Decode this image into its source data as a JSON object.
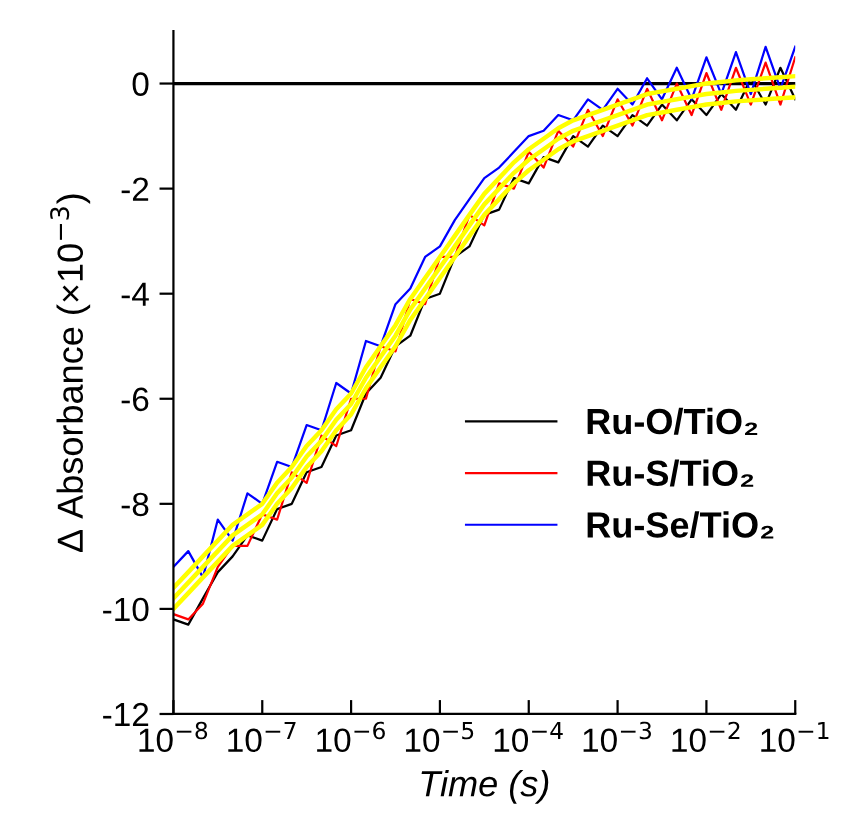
{
  "chart_data": {
    "type": "line",
    "xlabel": "Time (s)",
    "ylabel": "Δ Absorbance (×10$^{−3}$)",
    "log": "x",
    "xlim": [
      1e-08,
      0.1
    ],
    "ylim": [
      -12,
      1
    ],
    "xticks": [
      {
        "value": 1e-08,
        "label": "10$^{−8}$"
      },
      {
        "value": 1e-07,
        "label": "10$^{−7}$"
      },
      {
        "value": 1e-06,
        "label": "10$^{−6}$"
      },
      {
        "value": 1e-05,
        "label": "10$^{−5}$"
      },
      {
        "value": 0.0001,
        "label": "10$^{−4}$"
      },
      {
        "value": 0.001,
        "label": "10$^{−3}$"
      },
      {
        "value": 0.01,
        "label": "10$^{−2}$"
      },
      {
        "value": 0.1,
        "label": "10$^{−1}$"
      }
    ],
    "yticks": [
      -12,
      -10,
      -8,
      -6,
      -4,
      -2,
      0
    ],
    "x": [
      1e-08,
      1.47e-08,
      2.15e-08,
      3.16e-08,
      4.64e-08,
      6.81e-08,
      1e-07,
      1.47e-07,
      2.15e-07,
      3.16e-07,
      4.64e-07,
      6.81e-07,
      1e-06,
      1.47e-06,
      2.15e-06,
      3.16e-06,
      4.64e-06,
      6.81e-06,
      1e-05,
      1.47e-05,
      2.15e-05,
      3.16e-05,
      4.64e-05,
      6.81e-05,
      0.0001,
      0.000147,
      0.000215,
      0.000316,
      0.000464,
      0.000681,
      0.001,
      0.00147,
      0.00215,
      0.00316,
      0.00464,
      0.00681,
      0.01,
      0.0147,
      0.0215,
      0.0316,
      0.0464,
      0.0681,
      0.1
    ],
    "series": [
      {
        "name": "Ru-O/TiO₂",
        "color": "#000000",
        "values": [
          -10.2,
          -10.3,
          -9.8,
          -9.3,
          -9.0,
          -8.6,
          -8.7,
          -8.1,
          -8.0,
          -7.4,
          -7.3,
          -6.7,
          -6.6,
          -5.9,
          -5.6,
          -5.0,
          -4.8,
          -4.1,
          -4.0,
          -3.3,
          -3.1,
          -2.5,
          -2.4,
          -1.8,
          -1.9,
          -1.4,
          -1.5,
          -1.0,
          -1.2,
          -0.8,
          -1.0,
          -0.6,
          -0.8,
          -0.4,
          -0.7,
          -0.3,
          -0.6,
          -0.2,
          -0.5,
          0.1,
          -0.4,
          0.3,
          -0.3
        ]
      },
      {
        "name": "Ru-S/TiO₂",
        "color": "#ff0000",
        "values": [
          -10.1,
          -10.2,
          -9.9,
          -9.2,
          -8.8,
          -8.8,
          -8.2,
          -8.3,
          -7.4,
          -7.6,
          -6.7,
          -6.9,
          -6.0,
          -6.0,
          -5.0,
          -5.1,
          -4.1,
          -4.2,
          -3.3,
          -3.3,
          -2.5,
          -2.7,
          -1.9,
          -2.0,
          -1.3,
          -1.6,
          -0.9,
          -1.2,
          -0.5,
          -1.0,
          -0.3,
          -0.8,
          -0.1,
          -0.7,
          0.0,
          -0.6,
          0.2,
          -0.5,
          0.3,
          -0.4,
          0.4,
          -0.4,
          0.5
        ]
      },
      {
        "name": "Ru-Se/TiO₂",
        "color": "#0000ff",
        "values": [
          -9.2,
          -8.9,
          -9.4,
          -8.3,
          -8.7,
          -7.8,
          -8.0,
          -7.2,
          -7.3,
          -6.5,
          -6.6,
          -5.7,
          -5.9,
          -4.9,
          -5.0,
          -4.2,
          -3.9,
          -3.3,
          -3.1,
          -2.6,
          -2.2,
          -1.8,
          -1.6,
          -1.3,
          -1.0,
          -0.9,
          -0.6,
          -0.7,
          -0.3,
          -0.5,
          -0.1,
          -0.4,
          0.1,
          -0.3,
          0.3,
          -0.3,
          0.5,
          -0.2,
          0.6,
          -0.2,
          0.7,
          -0.1,
          0.7
        ]
      },
      {
        "color": "#ffff00",
        "values": [
          -9.6,
          -9.3,
          -9.0,
          -8.7,
          -8.4,
          -8.2,
          -8.0,
          -7.6,
          -7.3,
          -6.9,
          -6.6,
          -6.2,
          -5.9,
          -5.4,
          -5.0,
          -4.6,
          -4.1,
          -3.7,
          -3.3,
          -2.9,
          -2.5,
          -2.1,
          -1.8,
          -1.5,
          -1.25,
          -1.05,
          -0.85,
          -0.7,
          -0.6,
          -0.5,
          -0.4,
          -0.3,
          -0.2,
          -0.15,
          -0.1,
          -0.05,
          0.0,
          0.03,
          0.06,
          0.08,
          0.1,
          0.12,
          0.14
        ]
      },
      {
        "color": "#ffff00",
        "values": [
          -9.8,
          -9.5,
          -9.2,
          -8.9,
          -8.6,
          -8.4,
          -8.2,
          -7.8,
          -7.5,
          -7.1,
          -6.8,
          -6.4,
          -6.1,
          -5.6,
          -5.2,
          -4.8,
          -4.3,
          -3.9,
          -3.5,
          -3.1,
          -2.7,
          -2.3,
          -2.0,
          -1.7,
          -1.45,
          -1.25,
          -1.05,
          -0.9,
          -0.8,
          -0.7,
          -0.6,
          -0.5,
          -0.4,
          -0.35,
          -0.3,
          -0.25,
          -0.2,
          -0.17,
          -0.14,
          -0.12,
          -0.1,
          -0.08,
          -0.06
        ]
      },
      {
        "color": "#ffff00",
        "values": [
          -10.0,
          -9.7,
          -9.4,
          -9.1,
          -8.8,
          -8.6,
          -8.4,
          -8.0,
          -7.7,
          -7.3,
          -7.0,
          -6.6,
          -6.3,
          -5.8,
          -5.4,
          -5.0,
          -4.5,
          -4.1,
          -3.7,
          -3.3,
          -2.9,
          -2.5,
          -2.2,
          -1.9,
          -1.65,
          -1.45,
          -1.25,
          -1.1,
          -1.0,
          -0.9,
          -0.8,
          -0.7,
          -0.6,
          -0.55,
          -0.5,
          -0.45,
          -0.4,
          -0.37,
          -0.34,
          -0.32,
          -0.3,
          -0.28,
          -0.26
        ]
      }
    ],
    "ref_lines": [
      {
        "axis": "y",
        "value": 0,
        "color": "#000000"
      }
    ],
    "legend": "bottom right",
    "grid": false,
    "marker": "none",
    "line_style": "solid"
  }
}
